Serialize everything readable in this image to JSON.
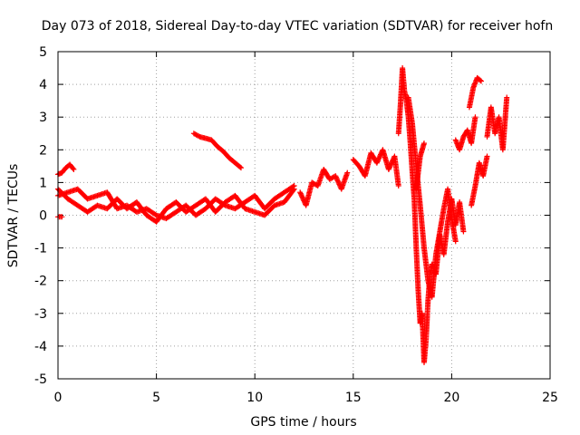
{
  "chart_data": {
    "type": "scatter",
    "title": "Day 073 of 2018, Sidereal Day-to-day VTEC variation (SDTVAR) for receiver hofn",
    "xlabel": "GPS time / hours",
    "ylabel": "SDTVAR / TECUs",
    "xlim": [
      0,
      25
    ],
    "ylim": [
      -5,
      5
    ],
    "xticks": [
      0,
      5,
      10,
      15,
      20,
      25
    ],
    "yticks": [
      -5,
      -4,
      -3,
      -2,
      -1,
      0,
      1,
      2,
      3,
      4,
      5
    ],
    "grid": true,
    "marker": "plus",
    "series": [
      {
        "name": "SDTVAR",
        "color": "#ff0000",
        "tracks": [
          {
            "x": [
              0.0,
              0.5,
              1.0,
              1.5,
              2.0,
              2.5,
              3.0,
              3.5,
              4.0,
              4.5,
              5.0,
              5.5,
              6.0,
              6.5,
              7.0,
              7.5,
              8.0,
              8.5,
              9.0,
              9.5,
              10.0,
              10.5,
              11.0,
              11.5,
              12.0
            ],
            "y": [
              0.6,
              0.7,
              0.8,
              0.5,
              0.6,
              0.7,
              0.2,
              0.3,
              0.1,
              0.2,
              0.0,
              -0.1,
              0.1,
              0.3,
              0.0,
              0.2,
              0.5,
              0.3,
              0.2,
              0.4,
              0.6,
              0.2,
              0.5,
              0.7,
              0.9
            ]
          },
          {
            "x": [
              0.0,
              0.5,
              1.0,
              1.5,
              2.0,
              2.5,
              3.0,
              3.5,
              4.0,
              4.5,
              5.0,
              5.5,
              6.0,
              6.5,
              7.0,
              7.5,
              8.0,
              8.5,
              9.0,
              9.5,
              10.0,
              10.5,
              11.0,
              11.5,
              12.0
            ],
            "y": [
              0.8,
              0.5,
              0.3,
              0.1,
              0.3,
              0.2,
              0.5,
              0.2,
              0.4,
              0.0,
              -0.2,
              0.2,
              0.4,
              0.1,
              0.3,
              0.5,
              0.1,
              0.4,
              0.6,
              0.2,
              0.1,
              0.0,
              0.3,
              0.4,
              0.8
            ]
          },
          {
            "x": [
              0.0,
              0.2,
              0.4,
              0.6,
              0.8
            ],
            "y": [
              1.25,
              1.3,
              1.45,
              1.55,
              1.4
            ]
          },
          {
            "x": [
              0.0,
              0.2
            ],
            "y": [
              -0.05,
              -0.05
            ]
          },
          {
            "x": [
              6.9,
              7.2,
              7.5,
              7.8,
              8.1,
              8.4,
              8.7,
              9.0,
              9.3
            ],
            "y": [
              2.5,
              2.4,
              2.35,
              2.3,
              2.1,
              1.95,
              1.75,
              1.6,
              1.45
            ]
          },
          {
            "x": [
              12.3,
              12.6,
              12.9,
              13.2,
              13.5,
              13.8,
              14.1,
              14.4,
              14.7
            ],
            "y": [
              0.7,
              0.3,
              1.0,
              0.9,
              1.4,
              1.1,
              1.2,
              0.8,
              1.3
            ]
          },
          {
            "x": [
              15.0,
              15.3,
              15.6,
              15.9,
              16.2,
              16.5,
              16.8,
              17.1,
              17.3
            ],
            "y": [
              1.7,
              1.5,
              1.2,
              1.9,
              1.6,
              2.0,
              1.4,
              1.8,
              0.9
            ]
          },
          {
            "x": [
              17.3,
              17.4,
              17.5,
              17.6,
              17.7,
              17.8,
              17.9,
              18.0,
              18.1,
              18.2,
              18.3,
              18.4,
              18.5,
              18.6,
              18.7,
              18.8,
              18.9,
              19.0,
              19.2,
              19.4,
              19.6,
              19.8,
              20.0,
              20.2,
              20.4,
              20.6
            ],
            "y": [
              2.5,
              3.4,
              4.5,
              3.8,
              3.5,
              3.0,
              2.2,
              1.3,
              0.5,
              -1.0,
              -2.3,
              -3.3,
              -3.0,
              -4.5,
              -3.8,
              -2.6,
              -1.8,
              -1.5,
              -1.8,
              -0.6,
              -1.2,
              -0.2,
              0.5,
              -0.3,
              0.4,
              -0.5
            ]
          },
          {
            "x": [
              17.8,
              18.0,
              18.2,
              18.4,
              18.6,
              18.8,
              19.0,
              19.2,
              19.4,
              19.6,
              19.8,
              20.0,
              20.2
            ],
            "y": [
              3.6,
              2.8,
              1.5,
              0.3,
              -1.0,
              -2.0,
              -2.5,
              -1.2,
              -0.5,
              0.2,
              0.8,
              -0.1,
              -0.8
            ]
          },
          {
            "x": [
              18.2,
              18.4,
              18.6
            ],
            "y": [
              0.8,
              1.8,
              2.2
            ]
          },
          {
            "x": [
              20.2,
              20.4,
              20.6,
              20.8,
              21.0,
              21.2
            ],
            "y": [
              2.3,
              2.0,
              2.4,
              2.6,
              2.2,
              3.0
            ]
          },
          {
            "x": [
              21.0,
              21.2,
              21.4,
              21.6,
              21.8
            ],
            "y": [
              0.3,
              0.9,
              1.6,
              1.2,
              1.8
            ]
          },
          {
            "x": [
              20.9,
              21.1,
              21.3,
              21.5
            ],
            "y": [
              3.3,
              3.9,
              4.2,
              4.1
            ]
          },
          {
            "x": [
              21.8,
              22.0,
              22.2,
              22.4,
              22.6,
              22.8
            ],
            "y": [
              2.4,
              3.3,
              2.5,
              3.0,
              2.0,
              3.6
            ]
          }
        ]
      }
    ]
  }
}
